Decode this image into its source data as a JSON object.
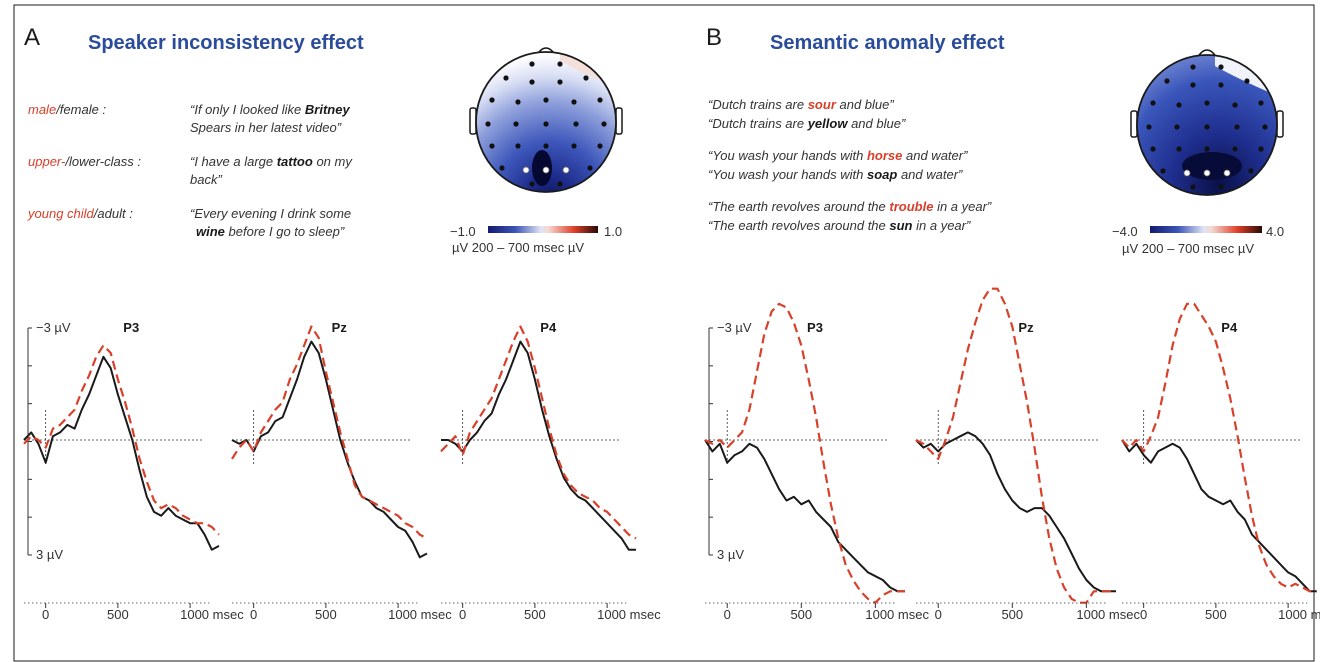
{
  "panels": [
    {
      "letter": "A",
      "title": "Speaker inconsistency effect",
      "conditions": [
        {
          "red": "male",
          "rest": "/female  :",
          "s1a": "“If only I looked like ",
          "s1kw": "Britney",
          "s1b": "",
          "s2a": " Spears in her latest video”",
          "s2kw": "",
          "s2b": ""
        },
        {
          "red": "upper-",
          "rest": "/lower-class :",
          "s1a": "“I have a large ",
          "s1kw": "tattoo",
          "s1b": " on my",
          "s2a": " back”",
          "s2kw": "",
          "s2b": ""
        },
        {
          "red": "young child",
          "rest": "/adult :",
          "s1a": "“Every evening I drink some",
          "s1kw": "",
          "s1b": "",
          "s2a": "",
          "s2kw": "wine",
          "s2b": " before I go to sleep”"
        }
      ],
      "scale": {
        "min": "−1.0",
        "max": "1.0",
        "caption": "µV 200 – 700 msec µV"
      }
    },
    {
      "letter": "B",
      "title": "Semantic anomaly effect",
      "pairs": [
        {
          "a1": "“Dutch trains are ",
          "akw": "sour",
          "a2": " and blue”",
          "b1": "“Dutch trains are ",
          "bkw": "yellow",
          "b2": " and blue”"
        },
        {
          "a1": "“You wash your hands with ",
          "akw": "horse",
          "a2": " and water”",
          "b1": "“You wash your hands with ",
          "bkw": "soap",
          "b2": " and water”"
        },
        {
          "a1": "“The earth revolves around the ",
          "akw": "trouble",
          "a2": " in a year”",
          "b1": "“The earth revolves around the ",
          "bkw": "sun",
          "b2": " in a year”"
        }
      ],
      "scale": {
        "min": "−4.0",
        "max": "4.0",
        "caption": "µV 200 – 700 msec µV"
      }
    }
  ],
  "colors": {
    "title": "#2b4c9b",
    "accent_red": "#d9402a",
    "line_black": "#1a1a1a"
  },
  "chart_data": [
    {
      "type": "line",
      "panel": "A",
      "yaxis": {
        "top_label": "−3 µV",
        "bottom_label": "3 µV",
        "ylim": [
          3,
          -3
        ],
        "inverted": true
      },
      "xaxis": {
        "ticks": [
          "0",
          "500",
          "1000 msec"
        ],
        "xlim": [
          -150,
          1200
        ]
      },
      "electrodes": [
        {
          "name": "P3",
          "series": [
            {
              "style": "solid",
              "x": [
                -150,
                -100,
                -50,
                0,
                50,
                100,
                150,
                200,
                250,
                300,
                350,
                400,
                450,
                500,
                550,
                600,
                650,
                700,
                750,
                800,
                850,
                900,
                950,
                1000,
                1050,
                1100,
                1150,
                1200
              ],
              "y": [
                0,
                -0.2,
                0.1,
                0.6,
                -0.1,
                -0.2,
                -0.4,
                -0.3,
                -0.8,
                -1.2,
                -1.7,
                -2.2,
                -1.9,
                -1.2,
                -0.6,
                0,
                0.8,
                1.5,
                1.9,
                2.0,
                1.8,
                2.0,
                2.1,
                2.2,
                2.2,
                2.5,
                2.9,
                2.8
              ]
            },
            {
              "style": "dashed",
              "x": [
                -150,
                -100,
                -50,
                0,
                50,
                100,
                150,
                200,
                250,
                300,
                350,
                400,
                450,
                500,
                550,
                600,
                650,
                700,
                750,
                800,
                850,
                900,
                950,
                1000,
                1050,
                1100,
                1150,
                1200
              ],
              "y": [
                0.1,
                -0.1,
                0,
                0.2,
                -0.3,
                -0.4,
                -0.6,
                -0.8,
                -1.3,
                -1.7,
                -2.2,
                -2.5,
                -2.3,
                -1.6,
                -1.0,
                -0.3,
                0.5,
                1.1,
                1.6,
                1.8,
                1.7,
                1.8,
                2.0,
                2.1,
                2.2,
                2.2,
                2.3,
                2.5
              ]
            }
          ]
        },
        {
          "name": "Pz",
          "series": [
            {
              "style": "solid",
              "x": [
                -150,
                -100,
                -50,
                0,
                50,
                100,
                150,
                200,
                250,
                300,
                350,
                400,
                450,
                500,
                550,
                600,
                650,
                700,
                750,
                800,
                850,
                900,
                950,
                1000,
                1050,
                1100,
                1150,
                1200
              ],
              "y": [
                0,
                0.1,
                0,
                0.3,
                -0.1,
                -0.2,
                -0.5,
                -0.6,
                -1.1,
                -1.6,
                -2.2,
                -2.6,
                -2.3,
                -1.6,
                -0.8,
                0,
                0.6,
                1.1,
                1.5,
                1.6,
                1.8,
                1.9,
                2.1,
                2.3,
                2.4,
                2.7,
                3.1,
                3.0
              ]
            },
            {
              "style": "dashed",
              "x": [
                -150,
                -100,
                -50,
                0,
                50,
                100,
                150,
                200,
                250,
                300,
                350,
                400,
                450,
                500,
                550,
                600,
                650,
                700,
                750,
                800,
                850,
                900,
                950,
                1000,
                1050,
                1100,
                1150,
                1200
              ],
              "y": [
                0.5,
                0.2,
                0,
                0.3,
                -0.2,
                -0.5,
                -0.8,
                -1.0,
                -1.6,
                -2.0,
                -2.5,
                -3.0,
                -2.7,
                -1.8,
                -1.0,
                -0.2,
                0.5,
                1.2,
                1.5,
                1.6,
                1.7,
                1.8,
                1.9,
                2.0,
                2.2,
                2.3,
                2.5,
                2.6
              ]
            }
          ]
        },
        {
          "name": "P4",
          "series": [
            {
              "style": "solid",
              "x": [
                -150,
                -100,
                -50,
                0,
                50,
                100,
                150,
                200,
                250,
                300,
                350,
                400,
                450,
                500,
                550,
                600,
                650,
                700,
                750,
                800,
                850,
                900,
                950,
                1000,
                1050,
                1100,
                1150,
                1200
              ],
              "y": [
                0,
                0,
                0.1,
                0.3,
                0,
                -0.2,
                -0.5,
                -0.7,
                -1.2,
                -1.6,
                -2.1,
                -2.6,
                -2.3,
                -1.6,
                -0.8,
                -0.1,
                0.5,
                1.0,
                1.3,
                1.5,
                1.6,
                1.8,
                2.0,
                2.2,
                2.4,
                2.6,
                2.9,
                2.9
              ]
            },
            {
              "style": "dashed",
              "x": [
                -150,
                -100,
                -50,
                0,
                50,
                100,
                150,
                200,
                250,
                300,
                350,
                400,
                450,
                500,
                550,
                600,
                650,
                700,
                750,
                800,
                850,
                900,
                950,
                1000,
                1050,
                1100,
                1150,
                1200
              ],
              "y": [
                0.3,
                0.1,
                -0.1,
                0.4,
                -0.2,
                -0.5,
                -0.8,
                -1.1,
                -1.6,
                -2.1,
                -2.6,
                -3.0,
                -2.6,
                -1.9,
                -1.1,
                -0.3,
                0.4,
                0.9,
                1.2,
                1.4,
                1.5,
                1.6,
                1.8,
                1.9,
                2.1,
                2.3,
                2.5,
                2.6
              ]
            }
          ]
        }
      ]
    },
    {
      "type": "line",
      "panel": "B",
      "yaxis": {
        "top_label": "−3 µV",
        "bottom_label": "3 µV",
        "ylim": [
          3,
          -3
        ],
        "inverted": true
      },
      "xaxis": {
        "ticks": [
          "0",
          "500",
          "1000 msec"
        ],
        "xlim": [
          -150,
          1200
        ]
      },
      "electrodes": [
        {
          "name": "P3",
          "series": [
            {
              "style": "solid",
              "x": [
                -150,
                -100,
                -50,
                0,
                50,
                100,
                150,
                200,
                250,
                300,
                350,
                400,
                450,
                500,
                550,
                600,
                650,
                700,
                750,
                800,
                850,
                900,
                950,
                1000,
                1050,
                1100,
                1150,
                1200
              ],
              "y": [
                0,
                0.3,
                0.1,
                0.6,
                0.4,
                0.3,
                0.1,
                0.2,
                0.5,
                0.9,
                1.3,
                1.6,
                1.5,
                1.7,
                1.6,
                1.9,
                2.1,
                2.3,
                2.7,
                2.9,
                3.1,
                3.3,
                3.5,
                3.6,
                3.7,
                3.9,
                4.0,
                4.0
              ]
            },
            {
              "style": "dashed",
              "x": [
                -150,
                -100,
                -50,
                0,
                50,
                100,
                150,
                200,
                250,
                300,
                350,
                400,
                450,
                500,
                550,
                600,
                650,
                700,
                750,
                800,
                850,
                900,
                950,
                1000,
                1050,
                1100,
                1150,
                1200
              ],
              "y": [
                0,
                0.1,
                0,
                0.2,
                0,
                -0.2,
                -0.8,
                -1.8,
                -2.8,
                -3.4,
                -3.6,
                -3.5,
                -3.1,
                -2.5,
                -1.6,
                -0.6,
                0.6,
                1.7,
                2.6,
                3.3,
                3.7,
                4.0,
                4.2,
                4.3,
                4.1,
                4.0,
                4.0,
                4.0
              ]
            }
          ]
        },
        {
          "name": "Pz",
          "series": [
            {
              "style": "solid",
              "x": [
                -150,
                -100,
                -50,
                0,
                50,
                100,
                150,
                200,
                250,
                300,
                350,
                400,
                450,
                500,
                550,
                600,
                650,
                700,
                750,
                800,
                850,
                900,
                950,
                1000,
                1050,
                1100,
                1150,
                1200
              ],
              "y": [
                0,
                0.2,
                0.1,
                0.3,
                0.1,
                0,
                -0.1,
                -0.2,
                -0.1,
                0.1,
                0.4,
                0.9,
                1.3,
                1.6,
                1.8,
                1.9,
                1.8,
                1.8,
                2.0,
                2.3,
                2.6,
                3.0,
                3.4,
                3.7,
                3.9,
                4.0,
                4.0,
                4.0
              ]
            },
            {
              "style": "dashed",
              "x": [
                -150,
                -100,
                -50,
                0,
                50,
                100,
                150,
                200,
                250,
                300,
                350,
                400,
                450,
                500,
                550,
                600,
                650,
                700,
                750,
                800,
                850,
                900,
                950,
                1000,
                1050,
                1100,
                1150,
                1200
              ],
              "y": [
                0,
                0.1,
                0.3,
                0.5,
                0,
                -0.6,
                -1.5,
                -2.4,
                -3.1,
                -3.7,
                -4.0,
                -4.0,
                -3.6,
                -3.0,
                -2.0,
                -1.0,
                0.2,
                1.5,
                2.6,
                3.4,
                3.9,
                4.2,
                4.3,
                4.3,
                4.0,
                4.0,
                4.0,
                4.0
              ]
            }
          ]
        },
        {
          "name": "P4",
          "series": [
            {
              "style": "solid",
              "x": [
                -150,
                -100,
                -50,
                0,
                50,
                100,
                150,
                200,
                250,
                300,
                350,
                400,
                450,
                500,
                550,
                600,
                650,
                700,
                750,
                800,
                850,
                900,
                950,
                1000,
                1050,
                1100,
                1150,
                1200
              ],
              "y": [
                0,
                0.3,
                0.1,
                0.4,
                0.6,
                0.3,
                0.2,
                0.1,
                0.2,
                0.5,
                0.9,
                1.3,
                1.5,
                1.6,
                1.7,
                1.6,
                1.9,
                2.1,
                2.5,
                2.7,
                2.9,
                3.1,
                3.3,
                3.5,
                3.6,
                3.8,
                4.0,
                4.0
              ]
            },
            {
              "style": "dashed",
              "x": [
                -150,
                -100,
                -50,
                0,
                50,
                100,
                150,
                200,
                250,
                300,
                350,
                400,
                450,
                500,
                550,
                600,
                650,
                700,
                750,
                800,
                850,
                900,
                950,
                1000,
                1050,
                1100,
                1150,
                1200
              ],
              "y": [
                0,
                0.2,
                0,
                0.3,
                -0.1,
                -0.6,
                -1.5,
                -2.5,
                -3.2,
                -3.6,
                -3.6,
                -3.3,
                -3.0,
                -2.6,
                -1.9,
                -1.1,
                -0.1,
                1.0,
                2.0,
                2.8,
                3.3,
                3.6,
                3.8,
                3.9,
                3.8,
                3.9,
                4.0,
                4.0
              ]
            }
          ]
        }
      ]
    }
  ]
}
